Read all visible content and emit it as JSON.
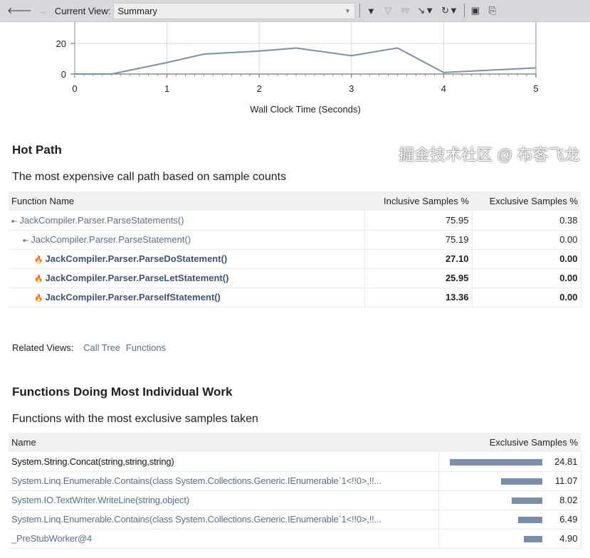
{
  "toolbar": {
    "label": "Current View:",
    "view": "Summary",
    "icons": [
      "back-arrow-icon",
      "forward-arrow-icon",
      "filter-icon",
      "clear-filter-icon",
      "filter-x-icon",
      "filter-add-icon",
      "filter-refresh-icon",
      "save-icon",
      "export-icon"
    ]
  },
  "chart_data": {
    "type": "line",
    "xlabel": "Wall Clock Time (Seconds)",
    "ylabel": "",
    "xlim": [
      0,
      5
    ],
    "ylim": [
      0,
      30
    ],
    "xticks": [
      "0",
      "1",
      "2",
      "3",
      "4",
      "5"
    ],
    "yticks": [
      "0",
      "20"
    ],
    "grid": true,
    "color": "#7a8fa8",
    "x": [
      0,
      0.4,
      1,
      1.4,
      2,
      2.4,
      3,
      3.5,
      4,
      5
    ],
    "y": [
      0,
      0,
      7.5,
      13,
      15,
      17,
      12,
      17,
      1,
      4
    ]
  },
  "hot_path": {
    "title": "Hot Path",
    "subtitle": "The most expensive call path based on sample counts",
    "columns": [
      "Function Name",
      "Inclusive Samples %",
      "Exclusive Samples %"
    ],
    "rows": [
      {
        "name": "JackCompiler.Parser.ParseStatements()",
        "inclusive": "75.95",
        "exclusive": "0.38",
        "icon": "call-path-icon",
        "bold": false,
        "indent": 0
      },
      {
        "name": "JackCompiler.Parser.ParseStatement()",
        "inclusive": "75.19",
        "exclusive": "0.00",
        "icon": "call-path-icon",
        "bold": false,
        "indent": 1
      },
      {
        "name": "JackCompiler.Parser.ParseDoStatement()",
        "inclusive": "27.10",
        "exclusive": "0.00",
        "icon": "hot-flame-icon",
        "bold": true,
        "indent": 2
      },
      {
        "name": "JackCompiler.Parser.ParseLetStatement()",
        "inclusive": "25.95",
        "exclusive": "0.00",
        "icon": "hot-flame-icon",
        "bold": true,
        "indent": 2
      },
      {
        "name": "JackCompiler.Parser.ParseIfStatement()",
        "inclusive": "13.36",
        "exclusive": "0.00",
        "icon": "hot-flame-icon",
        "bold": true,
        "indent": 2
      }
    ]
  },
  "related": {
    "label": "Related Views:",
    "links": [
      "Call Tree",
      "Functions"
    ]
  },
  "functions": {
    "title": "Functions Doing Most Individual Work",
    "subtitle": "Functions with the most exclusive samples taken",
    "columns": [
      "Name",
      "Exclusive Samples %"
    ],
    "rows": [
      {
        "name": "System.String.Concat(string,string,string)",
        "value": 24.81,
        "label": "24.81"
      },
      {
        "name": "System.Linq.Enumerable.Contains(class System.Collections.Generic.IEnumerable`1<!!0>,!!...",
        "value": 11.07,
        "label": "11.07"
      },
      {
        "name": "System.IO.TextWriter.WriteLine(string,object)",
        "value": 8.02,
        "label": "8.02"
      },
      {
        "name": "System.Linq.Enumerable.Contains(class System.Collections.Generic.IEnumerable`1<!!0>,!!...",
        "value": 6.49,
        "label": "6.49"
      },
      {
        "name": "_PreStubWorker@4",
        "value": 4.9,
        "label": "4.90"
      }
    ]
  },
  "watermark": "掘金技术社区 @ 布客飞龙"
}
